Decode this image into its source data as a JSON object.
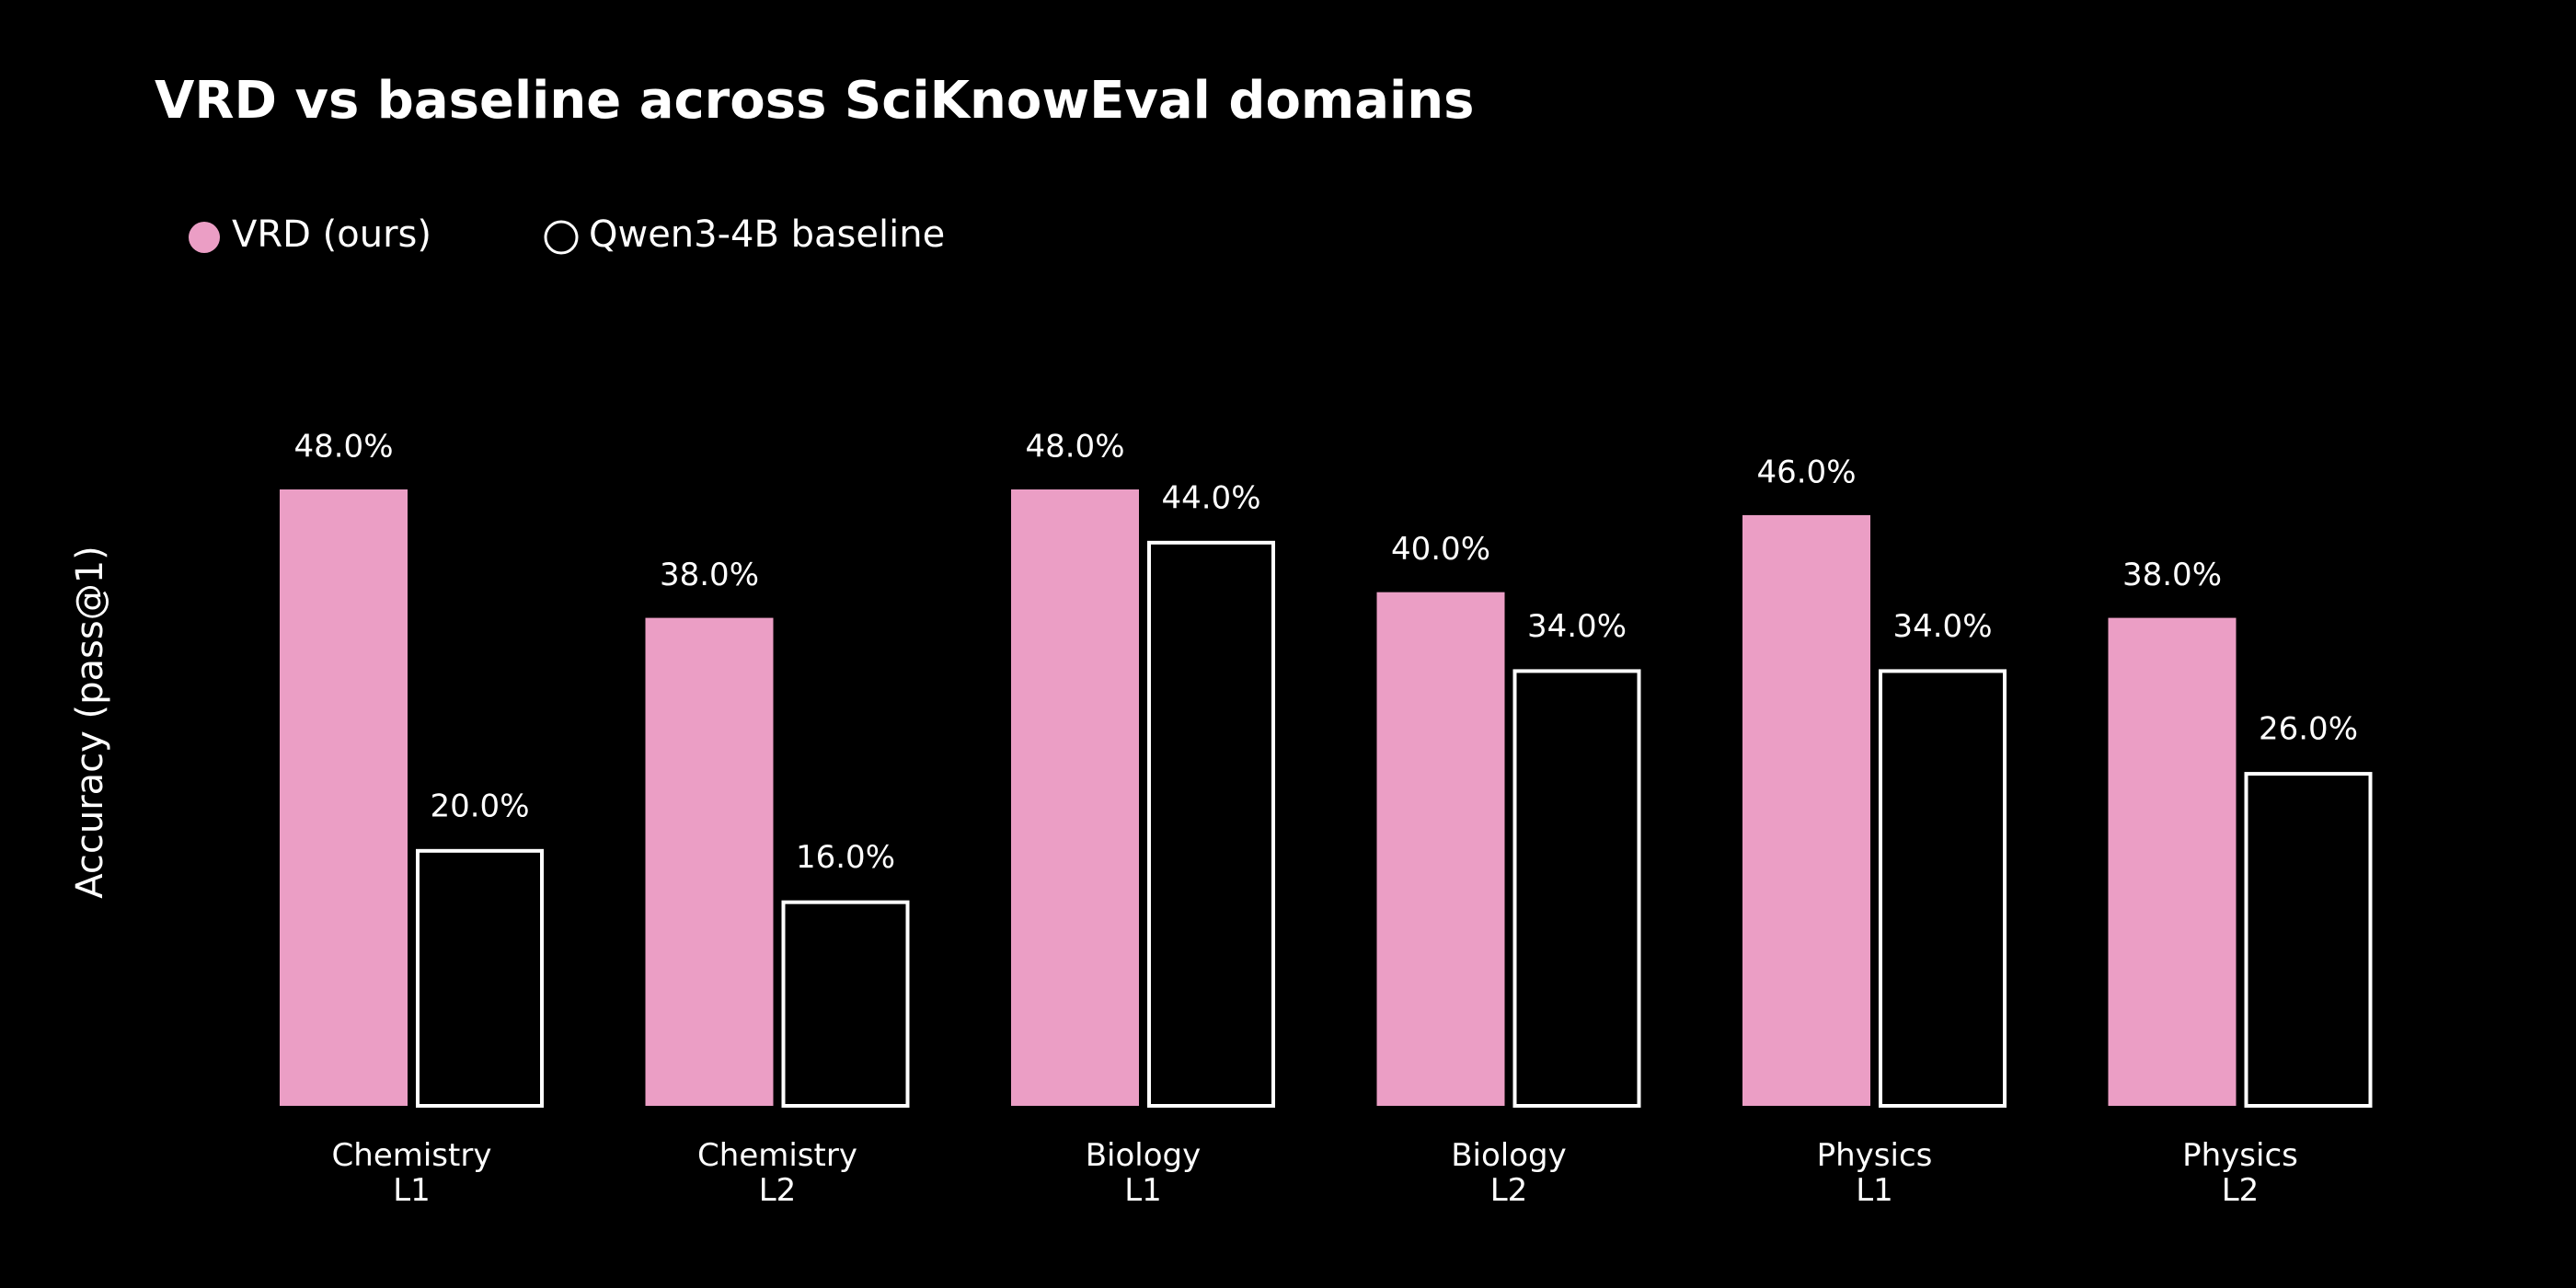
{
  "chart_data": {
    "type": "bar",
    "title": "VRD vs baseline across SciKnowEval domains",
    "y_label": "Accuracy (pass@1)",
    "categories": [
      "Chemistry\nL1",
      "Chemistry\nL2",
      "Biology\nL1",
      "Biology\nL2",
      "Physics\nL1",
      "Physics\nL2"
    ],
    "series": [
      {
        "name": "VRD (ours)",
        "color": "#eb9ec5",
        "filled": true,
        "values": [
          48,
          38,
          48,
          40,
          46,
          38
        ],
        "value_labels": [
          "48.0%",
          "38.0%",
          "48.0%",
          "40.0%",
          "46.0%",
          "38.0%"
        ]
      },
      {
        "name": "Qwen3-4B baseline",
        "color": "#ffffff",
        "filled": false,
        "values": [
          20,
          16,
          44,
          34,
          34,
          26
        ],
        "value_labels": [
          "20.0%",
          "16.0%",
          "44.0%",
          "34.0%",
          "34.0%",
          "26.0%"
        ]
      }
    ],
    "grid": false
  }
}
